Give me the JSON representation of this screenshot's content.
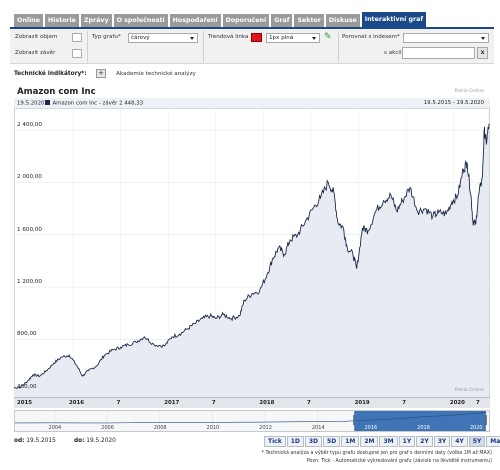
{
  "tabs": [
    {
      "label": "Online",
      "name": "tab-online"
    },
    {
      "label": "Historie",
      "name": "tab-historie"
    },
    {
      "label": "Zprávy",
      "name": "tab-zpravy"
    },
    {
      "label": "O společnosti",
      "name": "tab-o-spolecnosti"
    },
    {
      "label": "Hospodaření",
      "name": "tab-hospodareni"
    },
    {
      "label": "Doporučení",
      "name": "tab-doporuceni"
    },
    {
      "label": "Graf",
      "name": "tab-graf"
    },
    {
      "label": "Sektor",
      "name": "tab-sektor"
    },
    {
      "label": "Diskuse",
      "name": "tab-diskuse"
    },
    {
      "label": "Interaktivní graf",
      "name": "tab-interaktivni-graf",
      "active": true
    }
  ],
  "controls": {
    "show_volume_label": "Zobrazit objem",
    "show_close_label": "Zobrazit závěr",
    "chart_type_label": "Typ grafu*",
    "chart_type_value": "čárový",
    "trend_line_label": "Trendová linka",
    "trend_color": "#e0141e",
    "line_style_value": "1px plná",
    "compare_index_label": "Porovnat s indexem*",
    "compare_index_value": "",
    "compare_stock_label": "s akcií*",
    "compare_stock_value": "",
    "clear_label": "x"
  },
  "indicators": {
    "label": "Technické indikátory*:",
    "add_label": "+",
    "academy_label": "Akademie technické analýzy"
  },
  "chart_header": {
    "title": "Amazon com Inc",
    "watermark": "Patria Online",
    "legend_date": "19.5.2020",
    "legend_text": "Amazon com Inc - závěr 2 448,33",
    "legend_color": "#1b2a4a",
    "range_text": "19.5.2015 - 19.5.2020"
  },
  "chart_data": {
    "type": "area",
    "title": "Amazon com Inc",
    "series": [
      {
        "name": "Amazon com Inc - závěr",
        "color": "#1b2a4a",
        "fill": "#e8ecf2",
        "points": [
          [
            2015.38,
            430
          ],
          [
            2015.45,
            435
          ],
          [
            2015.52,
            480
          ],
          [
            2015.58,
            530
          ],
          [
            2015.65,
            520
          ],
          [
            2015.72,
            560
          ],
          [
            2015.8,
            620
          ],
          [
            2015.88,
            665
          ],
          [
            2015.96,
            680
          ],
          [
            2016.04,
            600
          ],
          [
            2016.1,
            520
          ],
          [
            2016.16,
            560
          ],
          [
            2016.25,
            600
          ],
          [
            2016.33,
            680
          ],
          [
            2016.42,
            720
          ],
          [
            2016.5,
            740
          ],
          [
            2016.58,
            760
          ],
          [
            2016.66,
            780
          ],
          [
            2016.75,
            820
          ],
          [
            2016.85,
            760
          ],
          [
            2016.96,
            750
          ],
          [
            2017.04,
            820
          ],
          [
            2017.12,
            840
          ],
          [
            2017.2,
            880
          ],
          [
            2017.28,
            920
          ],
          [
            2017.36,
            960
          ],
          [
            2017.44,
            980
          ],
          [
            2017.5,
            960
          ],
          [
            2017.58,
            990
          ],
          [
            2017.66,
            960
          ],
          [
            2017.75,
            980
          ],
          [
            2017.8,
            1100
          ],
          [
            2017.88,
            1150
          ],
          [
            2017.96,
            1170
          ],
          [
            2018.04,
            1300
          ],
          [
            2018.1,
            1420
          ],
          [
            2018.16,
            1500
          ],
          [
            2018.22,
            1450
          ],
          [
            2018.28,
            1560
          ],
          [
            2018.36,
            1600
          ],
          [
            2018.44,
            1700
          ],
          [
            2018.52,
            1800
          ],
          [
            2018.6,
            1880
          ],
          [
            2018.68,
            2000
          ],
          [
            2018.74,
            1920
          ],
          [
            2018.78,
            1700
          ],
          [
            2018.84,
            1650
          ],
          [
            2018.88,
            1500
          ],
          [
            2018.94,
            1450
          ],
          [
            2018.98,
            1340
          ],
          [
            2019.04,
            1650
          ],
          [
            2019.1,
            1630
          ],
          [
            2019.18,
            1780
          ],
          [
            2019.26,
            1860
          ],
          [
            2019.34,
            1900
          ],
          [
            2019.4,
            1780
          ],
          [
            2019.46,
            1860
          ],
          [
            2019.54,
            1960
          ],
          [
            2019.62,
            1780
          ],
          [
            2019.7,
            1800
          ],
          [
            2019.78,
            1740
          ],
          [
            2019.84,
            1770
          ],
          [
            2019.92,
            1760
          ],
          [
            2019.98,
            1850
          ],
          [
            2020.04,
            1900
          ],
          [
            2020.1,
            2100
          ],
          [
            2020.14,
            2150
          ],
          [
            2020.18,
            1900
          ],
          [
            2020.2,
            1700
          ],
          [
            2020.23,
            1680
          ],
          [
            2020.26,
            1900
          ],
          [
            2020.3,
            2040
          ],
          [
            2020.32,
            2400
          ],
          [
            2020.34,
            2300
          ],
          [
            2020.37,
            2448
          ]
        ]
      }
    ],
    "y_ticks": [
      "400,00",
      "800,00",
      "1 200,00",
      "1 600,00",
      "2 000,00",
      "2 400,00"
    ],
    "y_tick_values": [
      400,
      800,
      1200,
      1600,
      2000,
      2400
    ],
    "ylim": [
      360,
      2560
    ],
    "xlim": [
      2015.38,
      2020.38
    ],
    "x_ticks": [
      "2015",
      "2016",
      "7",
      "2017",
      "7",
      "2018",
      "7",
      "2019",
      "7",
      "2020",
      "7"
    ],
    "x_tick_values": [
      2015.38,
      2016.0,
      2016.5,
      2017.0,
      2017.5,
      2018.0,
      2018.5,
      2019.0,
      2019.5,
      2020.0,
      2020.37
    ],
    "grid": true
  },
  "navigator": {
    "labels": [
      "2004",
      "2006",
      "2008",
      "2010",
      "2012",
      "2014",
      "2016",
      "2018",
      "2020"
    ],
    "label_values": [
      2004,
      2006,
      2008,
      2010,
      2012,
      2014,
      2016,
      2018,
      2020
    ],
    "range": [
      2002.5,
      2020.5
    ],
    "selected": [
      2015.38,
      2020.38
    ],
    "selection_color": "#1f5dab",
    "history": [
      [
        2002.5,
        15
      ],
      [
        2004,
        40
      ],
      [
        2005,
        35
      ],
      [
        2006,
        30
      ],
      [
        2007,
        80
      ],
      [
        2008,
        60
      ],
      [
        2009,
        80
      ],
      [
        2010,
        130
      ],
      [
        2011,
        180
      ],
      [
        2012,
        220
      ],
      [
        2013,
        280
      ],
      [
        2014,
        330
      ],
      [
        2015,
        400
      ],
      [
        2016,
        700
      ],
      [
        2017,
        1000
      ],
      [
        2018,
        1500
      ],
      [
        2019,
        1800
      ],
      [
        2020.4,
        2448
      ]
    ],
    "history_max": 2600
  },
  "footer": {
    "from_label": "od:",
    "from_value": "19.5.2015",
    "to_label": "do:",
    "to_value": "19.5.2020",
    "ranges": [
      "Tick",
      "1D",
      "3D",
      "5D",
      "1M",
      "2M",
      "3M",
      "1Y",
      "2Y",
      "3Y",
      "4Y",
      "5Y",
      "Max"
    ],
    "active_range": "5Y",
    "note1": "* Technická analýza a výběr typu grafu dostupné jen pro graf s denními daty (volba 1M až MAX)",
    "note2": "Pozn: Tick - Automatické vykreslování grafu (závislé na likviditě instrumentu)"
  }
}
